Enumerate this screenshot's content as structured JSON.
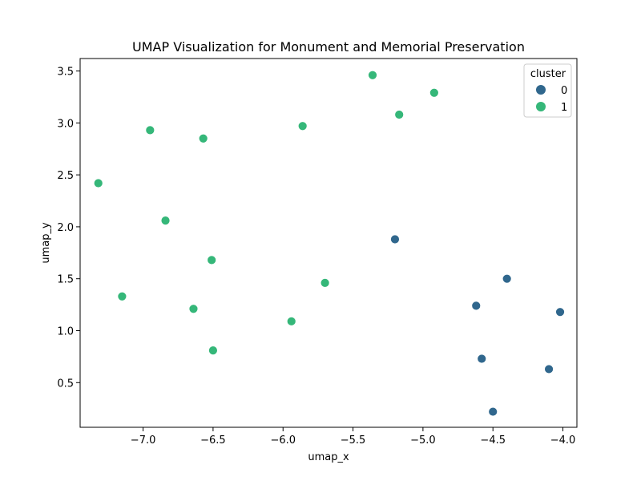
{
  "chart_data": {
    "type": "scatter",
    "title": "UMAP Visualization for Monument and Memorial Preservation",
    "xlabel": "umap_x",
    "ylabel": "umap_y",
    "xlim": [
      -7.45,
      -3.9
    ],
    "ylim": [
      0.07,
      3.62
    ],
    "xticks": [
      -7.0,
      -6.5,
      -6.0,
      -5.5,
      -5.0,
      -4.5,
      -4.0
    ],
    "xtick_labels": [
      "−7.0",
      "−6.5",
      "−6.0",
      "−5.5",
      "−5.0",
      "−4.5",
      "−4.0"
    ],
    "yticks": [
      0.5,
      1.0,
      1.5,
      2.0,
      2.5,
      3.0,
      3.5
    ],
    "ytick_labels": [
      "0.5",
      "1.0",
      "1.5",
      "2.0",
      "2.5",
      "3.0",
      "3.5"
    ],
    "grid": false,
    "legend": {
      "title": "cluster",
      "position": "top-right",
      "entries": [
        "0",
        "1"
      ]
    },
    "colors": {
      "0": "#30678d",
      "1": "#35b779"
    },
    "series": [
      {
        "name": "0",
        "points": [
          {
            "x": -5.2,
            "y": 1.88
          },
          {
            "x": -4.4,
            "y": 1.5
          },
          {
            "x": -4.62,
            "y": 1.24
          },
          {
            "x": -4.02,
            "y": 1.18
          },
          {
            "x": -4.58,
            "y": 0.73
          },
          {
            "x": -4.1,
            "y": 0.63
          },
          {
            "x": -4.5,
            "y": 0.22
          }
        ]
      },
      {
        "name": "1",
        "points": [
          {
            "x": -5.36,
            "y": 3.46
          },
          {
            "x": -4.92,
            "y": 3.29
          },
          {
            "x": -5.17,
            "y": 3.08
          },
          {
            "x": -5.86,
            "y": 2.97
          },
          {
            "x": -6.95,
            "y": 2.93
          },
          {
            "x": -6.57,
            "y": 2.85
          },
          {
            "x": -7.32,
            "y": 2.42
          },
          {
            "x": -6.84,
            "y": 2.06
          },
          {
            "x": -6.51,
            "y": 1.68
          },
          {
            "x": -5.7,
            "y": 1.46
          },
          {
            "x": -7.15,
            "y": 1.33
          },
          {
            "x": -6.64,
            "y": 1.21
          },
          {
            "x": -5.94,
            "y": 1.09
          },
          {
            "x": -6.5,
            "y": 0.81
          }
        ]
      }
    ]
  }
}
